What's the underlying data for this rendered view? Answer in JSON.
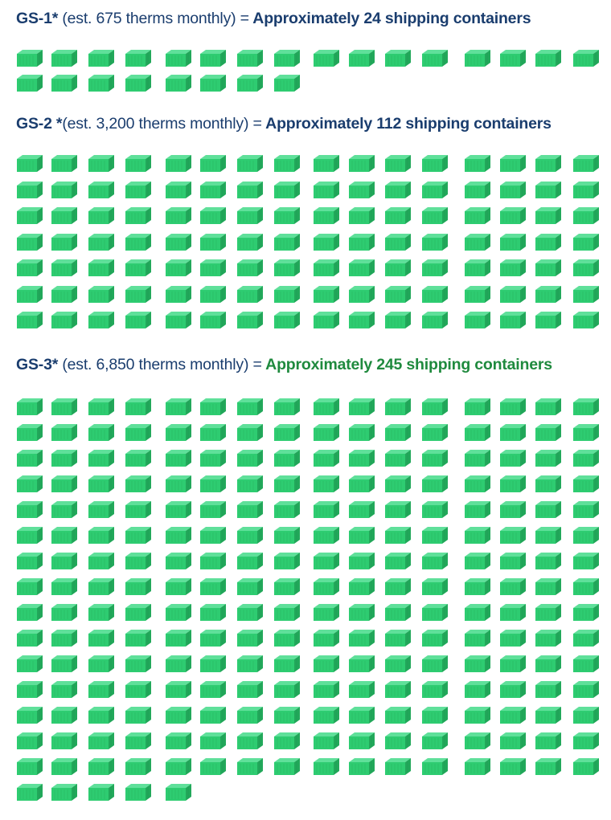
{
  "sections": [
    {
      "code": "GS-1*",
      "estimate": " (est. 675 therms monthly) =",
      "result": " Approximately 24 shipping containers",
      "containers": 24
    },
    {
      "code": "GS-2 *",
      "estimate": "(est. 3,200 therms monthly) =",
      "result": " Approximately 112 shipping containers",
      "containers": 112
    },
    {
      "code": "GS-3*",
      "estimate": " (est. 6,850 therms monthly) =",
      "result": " Approximately 245 shipping containers",
      "containers": 245
    }
  ],
  "icon": "shipping-container-icon",
  "colors": {
    "heading": "#1a3d6e",
    "highlight": "#1f8a3e",
    "container_front": "#2ecc71",
    "container_side": "#22a85a",
    "container_top": "#5fe09a"
  }
}
